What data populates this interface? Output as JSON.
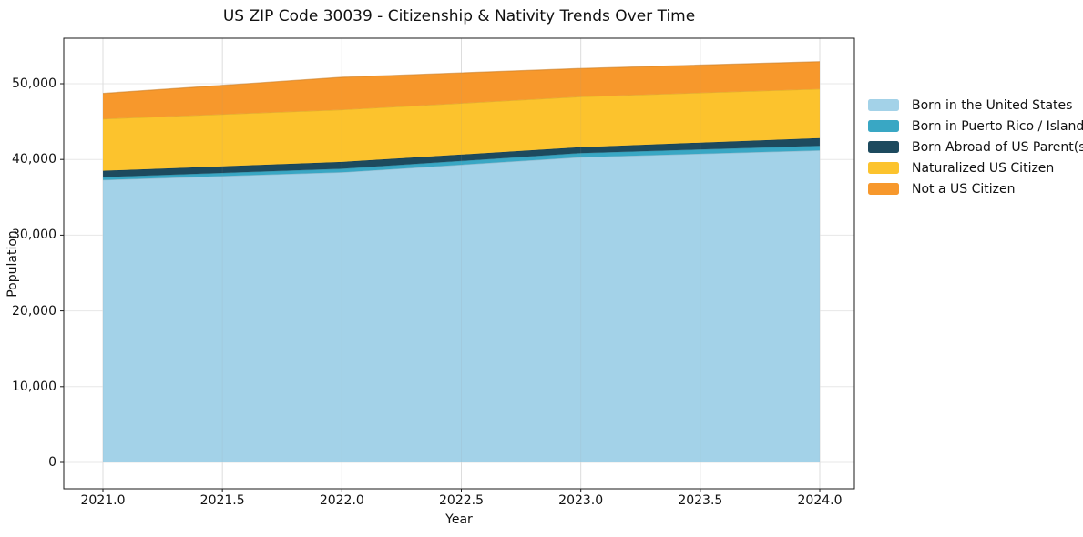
{
  "title": "US ZIP Code 30039 - Citizenship & Nativity Trends Over Time",
  "chart_data": {
    "type": "area",
    "stacked": true,
    "title": "US ZIP Code 30039 - Citizenship & Nativity Trends Over Time",
    "xlabel": "Year",
    "ylabel": "Population",
    "grid": true,
    "legend_position": "outside-right-top",
    "x": [
      2021,
      2022,
      2023,
      2024
    ],
    "series": [
      {
        "name": "Born in the United States",
        "color": "#a3d2e8",
        "values": [
          37300,
          38300,
          40300,
          41200
        ]
      },
      {
        "name": "Born in Puerto Rico / Islands",
        "color": "#39a7c4",
        "values": [
          370,
          480,
          540,
          600
        ]
      },
      {
        "name": "Born Abroad of US Parent(s)",
        "color": "#1d4a5e",
        "values": [
          840,
          900,
          780,
          1020
        ]
      },
      {
        "name": "Naturalized US Citizen",
        "color": "#fcc32d",
        "values": [
          6850,
          6900,
          6670,
          6490
        ]
      },
      {
        "name": "Not a US Citizen",
        "color": "#f7982c",
        "values": [
          3370,
          4270,
          3730,
          3610
        ]
      }
    ],
    "stack_totals": [
      48730,
      50850,
      52020,
      52920
    ],
    "x_ticks": [
      {
        "value": 2021.0,
        "label": "2021.0"
      },
      {
        "value": 2021.5,
        "label": "2021.5"
      },
      {
        "value": 2022.0,
        "label": "2022.0"
      },
      {
        "value": 2022.5,
        "label": "2022.5"
      },
      {
        "value": 2023.0,
        "label": "2023.0"
      },
      {
        "value": 2023.5,
        "label": "2023.5"
      },
      {
        "value": 2024.0,
        "label": "2024.0"
      }
    ],
    "y_ticks": [
      {
        "value": 0,
        "label": "0"
      },
      {
        "value": 10000,
        "label": "10,000"
      },
      {
        "value": 20000,
        "label": "20,000"
      },
      {
        "value": 30000,
        "label": "30,000"
      },
      {
        "value": 40000,
        "label": "40,000"
      },
      {
        "value": 50000,
        "label": "50,000"
      }
    ],
    "xlim": [
      2020.84,
      2024.16
    ],
    "ylim": [
      -2900,
      56000
    ]
  }
}
